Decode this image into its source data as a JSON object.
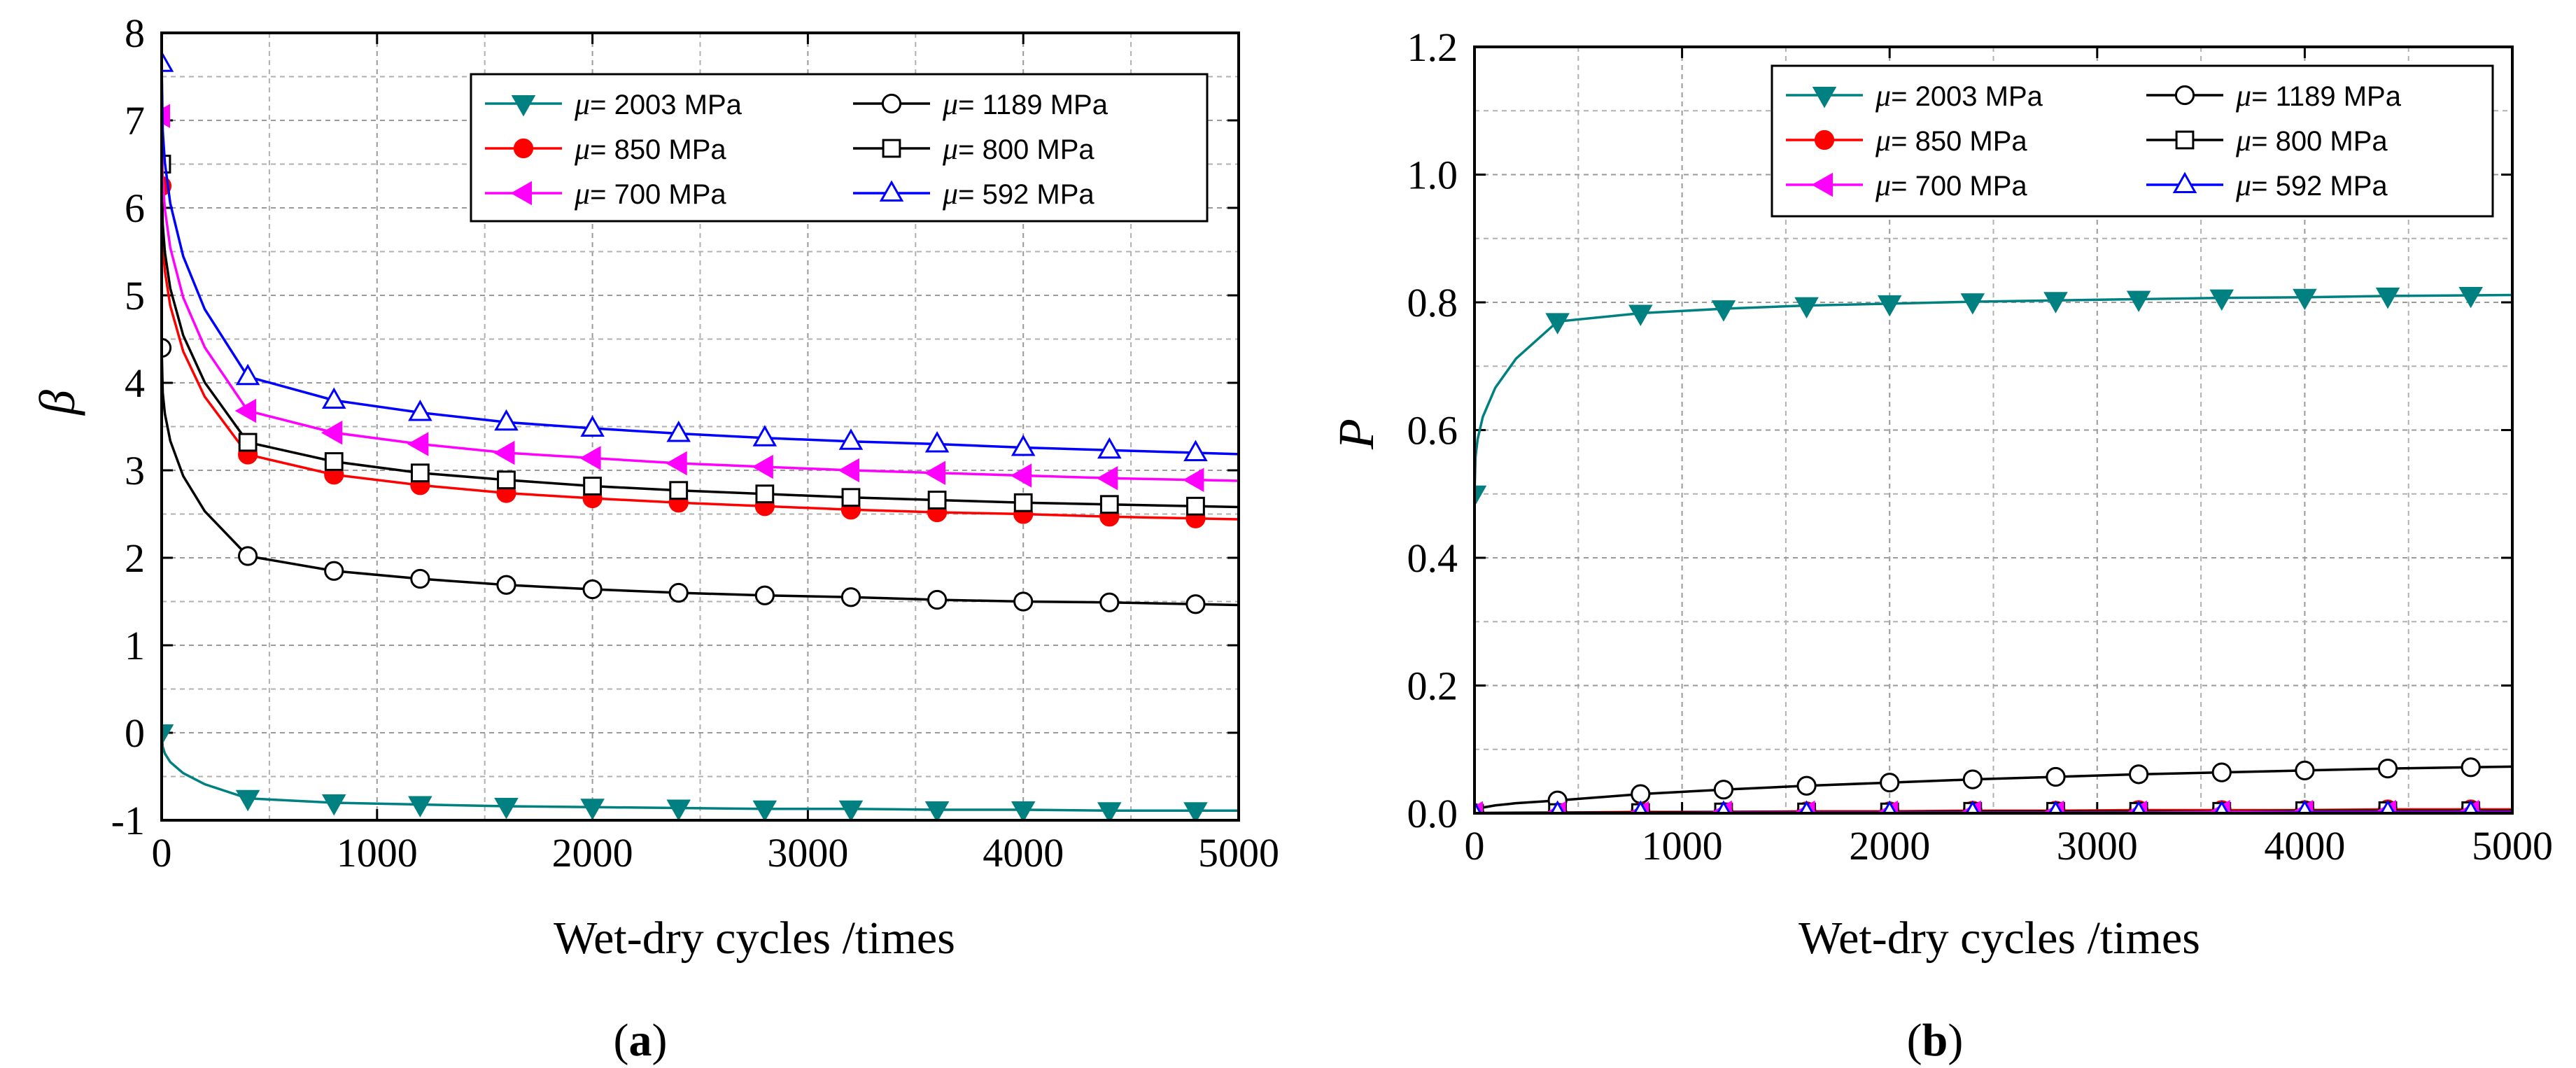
{
  "chart_data": [
    {
      "type": "line",
      "panel": "a",
      "xlabel": "Wet-dry cycles /times",
      "ylabel": "β",
      "xlim": [
        0,
        5000
      ],
      "ylim": [
        -1,
        8
      ],
      "xticks": [
        0,
        1000,
        2000,
        3000,
        4000,
        5000
      ],
      "yticks": [
        -1,
        0,
        1,
        2,
        3,
        4,
        5,
        6,
        7,
        8
      ],
      "grid": true,
      "legend_position": "top-right",
      "x": [
        0,
        400,
        800,
        1200,
        1600,
        2000,
        2400,
        2800,
        3200,
        3600,
        4000,
        4400,
        4800
      ],
      "series": [
        {
          "name": "μ= 2003 MPa",
          "mu": "2003",
          "color": "#008080",
          "marker": "triangle-down",
          "filled": true,
          "values": [
            0.0,
            -0.75,
            -0.8,
            -0.82,
            -0.84,
            -0.85,
            -0.86,
            -0.87,
            -0.87,
            -0.88,
            -0.88,
            -0.89,
            -0.89
          ]
        },
        {
          "name": "μ= 1189 MPa",
          "mu": "1189",
          "color": "#000000",
          "marker": "circle",
          "filled": false,
          "values": [
            4.4,
            2.02,
            1.85,
            1.76,
            1.69,
            1.64,
            1.6,
            1.57,
            1.55,
            1.52,
            1.5,
            1.49,
            1.47
          ]
        },
        {
          "name": "μ= 850 MPa",
          "mu": "850",
          "color": "#ff0000",
          "marker": "circle",
          "filled": true,
          "values": [
            6.25,
            3.18,
            2.95,
            2.83,
            2.74,
            2.68,
            2.63,
            2.59,
            2.55,
            2.52,
            2.5,
            2.47,
            2.45
          ]
        },
        {
          "name": "μ= 800 MPa",
          "mu": "800",
          "color": "#000000",
          "marker": "square",
          "filled": false,
          "values": [
            6.5,
            3.32,
            3.1,
            2.97,
            2.89,
            2.82,
            2.77,
            2.73,
            2.69,
            2.66,
            2.63,
            2.61,
            2.59
          ]
        },
        {
          "name": "μ= 700 MPa",
          "mu": "700",
          "color": "#ff00ff",
          "marker": "triangle-left",
          "filled": true,
          "values": [
            7.05,
            3.68,
            3.43,
            3.3,
            3.2,
            3.14,
            3.08,
            3.04,
            3.0,
            2.97,
            2.94,
            2.91,
            2.89
          ]
        },
        {
          "name": "μ= 592 MPa",
          "mu": "592",
          "color": "#0000ff",
          "marker": "triangle-up",
          "filled": false,
          "values": [
            7.65,
            4.07,
            3.8,
            3.66,
            3.55,
            3.48,
            3.42,
            3.37,
            3.33,
            3.3,
            3.26,
            3.23,
            3.2
          ]
        }
      ]
    },
    {
      "type": "line",
      "panel": "b",
      "xlabel": "Wet-dry cycles /times",
      "ylabel": "P",
      "xlim": [
        0,
        5000
      ],
      "ylim": [
        0,
        1.2
      ],
      "xticks": [
        0,
        1000,
        2000,
        3000,
        4000,
        5000
      ],
      "yticks": [
        0.0,
        0.2,
        0.4,
        0.6,
        0.8,
        1.0,
        1.2
      ],
      "ytick_labels": [
        "0.0",
        "0.2",
        "0.4",
        "0.6",
        "0.8",
        "1.0",
        "1.2"
      ],
      "grid": true,
      "legend_position": "top-right",
      "x": [
        0,
        400,
        800,
        1200,
        1600,
        2000,
        2400,
        2800,
        3200,
        3600,
        4000,
        4400,
        4800
      ],
      "series": [
        {
          "name": "μ= 2003 MPa",
          "mu": "2003",
          "color": "#008080",
          "marker": "triangle-down",
          "filled": true,
          "values": [
            0.5,
            0.77,
            0.783,
            0.79,
            0.795,
            0.798,
            0.801,
            0.803,
            0.805,
            0.807,
            0.808,
            0.81,
            0.811
          ]
        },
        {
          "name": "μ= 1189 MPa",
          "mu": "1189",
          "color": "#000000",
          "marker": "circle",
          "filled": false,
          "values": [
            0.0,
            0.02,
            0.03,
            0.037,
            0.043,
            0.048,
            0.053,
            0.057,
            0.061,
            0.064,
            0.067,
            0.07,
            0.072
          ]
        },
        {
          "name": "μ= 850 MPa",
          "mu": "850",
          "color": "#ff0000",
          "marker": "circle",
          "filled": true,
          "values": [
            0.0,
            0.001,
            0.002,
            0.002,
            0.003,
            0.003,
            0.004,
            0.004,
            0.005,
            0.005,
            0.005,
            0.006,
            0.006
          ]
        },
        {
          "name": "μ= 800 MPa",
          "mu": "800",
          "color": "#000000",
          "marker": "square",
          "filled": false,
          "values": [
            0.0,
            0.001,
            0.001,
            0.002,
            0.002,
            0.002,
            0.003,
            0.003,
            0.003,
            0.003,
            0.004,
            0.004,
            0.004
          ]
        },
        {
          "name": "μ= 700 MPa",
          "mu": "700",
          "color": "#ff00ff",
          "marker": "triangle-left",
          "filled": true,
          "values": [
            0.0,
            0.0,
            0.0,
            0.001,
            0.001,
            0.001,
            0.001,
            0.001,
            0.001,
            0.002,
            0.002,
            0.002,
            0.002
          ]
        },
        {
          "name": "μ= 592 MPa",
          "mu": "592",
          "color": "#0000ff",
          "marker": "triangle-up",
          "filled": false,
          "values": [
            0.0,
            0.0,
            0.0,
            0.0,
            0.0,
            0.0,
            0.0,
            0.0,
            0.0,
            0.0,
            0.001,
            0.001,
            0.001
          ]
        }
      ]
    }
  ],
  "panel_labels": [
    "a",
    "b"
  ],
  "legend_unit": "MPa"
}
